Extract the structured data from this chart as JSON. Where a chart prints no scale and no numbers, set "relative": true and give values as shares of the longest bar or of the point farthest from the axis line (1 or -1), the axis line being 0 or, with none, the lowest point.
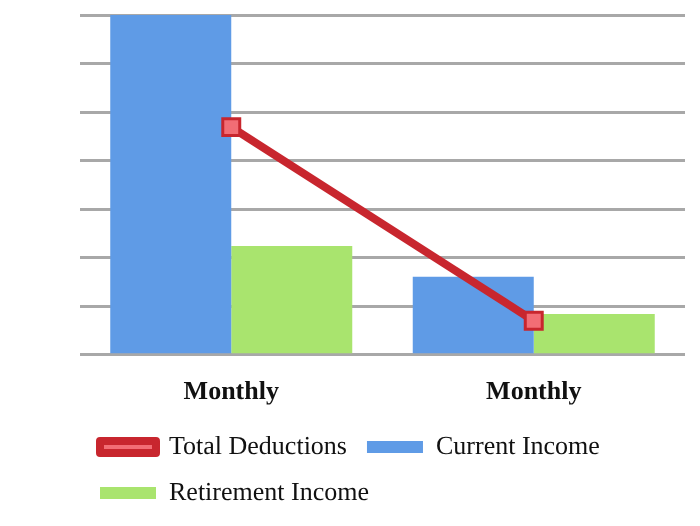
{
  "chart_data": {
    "type": "bar",
    "relative": true,
    "categories": [
      "Monthly",
      "Monthly"
    ],
    "series": [
      {
        "name": "Current Income",
        "color": "#5f9be6",
        "values": [
          1,
          0.23
        ]
      },
      {
        "name": "Retirement Income",
        "color": "#a9e46e",
        "values": [
          0.32,
          0.12
        ]
      },
      {
        "name": "Total Deductions",
        "type": "line",
        "color": "#c8262e",
        "values": [
          0.67,
          0.1
        ],
        "marker": "square"
      }
    ],
    "grid": "y",
    "legend": "bottom"
  }
}
